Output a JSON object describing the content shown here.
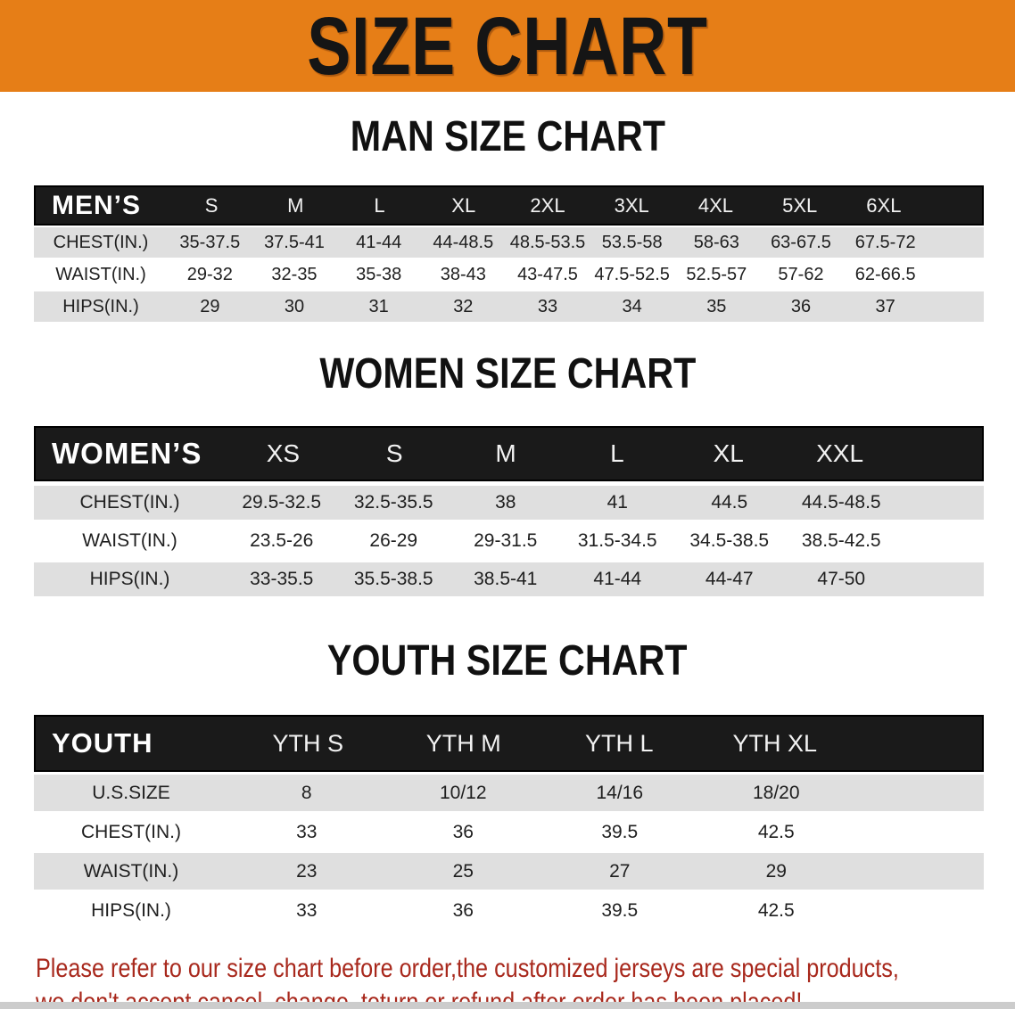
{
  "banner": {
    "title": "SIZE CHART"
  },
  "colors": {
    "banner_bg": "#e67e17",
    "header_bar": "#1a1a1a",
    "row_gray": "#dfdfdf",
    "footer_red": "#a8281c",
    "bottom_strip": "#cccccc"
  },
  "men": {
    "heading": "MAN SIZE CHART",
    "group_label": "MEN’S",
    "columns": [
      "S",
      "M",
      "L",
      "XL",
      "2XL",
      "3XL",
      "4XL",
      "5XL",
      "6XL"
    ],
    "rows": [
      {
        "label": "CHEST(IN.)",
        "values": [
          "35-37.5",
          "37.5-41",
          "41-44",
          "44-48.5",
          "48.5-53.5",
          "53.5-58",
          "58-63",
          "63-67.5",
          "67.5-72"
        ]
      },
      {
        "label": "WAIST(IN.)",
        "values": [
          "29-32",
          "32-35",
          "35-38",
          "38-43",
          "43-47.5",
          "47.5-52.5",
          "52.5-57",
          "57-62",
          "62-66.5"
        ]
      },
      {
        "label": "HIPS(IN.)",
        "values": [
          "29",
          "30",
          "31",
          "32",
          "33",
          "34",
          "35",
          "36",
          "37"
        ]
      }
    ]
  },
  "women": {
    "heading": "WOMEN SIZE CHART",
    "group_label": "WOMEN’S",
    "columns": [
      "XS",
      "S",
      "M",
      "L",
      "XL",
      "XXL"
    ],
    "rows": [
      {
        "label": "CHEST(IN.)",
        "values": [
          "29.5-32.5",
          "32.5-35.5",
          "38",
          "41",
          "44.5",
          "44.5-48.5"
        ]
      },
      {
        "label": "WAIST(IN.)",
        "values": [
          "23.5-26",
          "26-29",
          "29-31.5",
          "31.5-34.5",
          "34.5-38.5",
          "38.5-42.5"
        ]
      },
      {
        "label": "HIPS(IN.)",
        "values": [
          "33-35.5",
          "35.5-38.5",
          "38.5-41",
          "41-44",
          "44-47",
          "47-50"
        ]
      }
    ]
  },
  "youth": {
    "heading": "YOUTH SIZE CHART",
    "group_label": "YOUTH",
    "columns": [
      "YTH S",
      "YTH M",
      "YTH L",
      "YTH XL"
    ],
    "rows": [
      {
        "label": "U.S.SIZE",
        "values": [
          "8",
          "10/12",
          "14/16",
          "18/20"
        ]
      },
      {
        "label": "CHEST(IN.)",
        "values": [
          "33",
          "36",
          "39.5",
          "42.5"
        ]
      },
      {
        "label": "WAIST(IN.)",
        "values": [
          "23",
          "25",
          "27",
          "29"
        ]
      },
      {
        "label": "HIPS(IN.)",
        "values": [
          "33",
          "36",
          "39.5",
          "42.5"
        ]
      }
    ]
  },
  "footer": {
    "line1": "Please refer to our size chart before order,the customized jerseys are special products,",
    "line2": "we don't accept cancel, change, teturn or refund after order has been placed!"
  }
}
